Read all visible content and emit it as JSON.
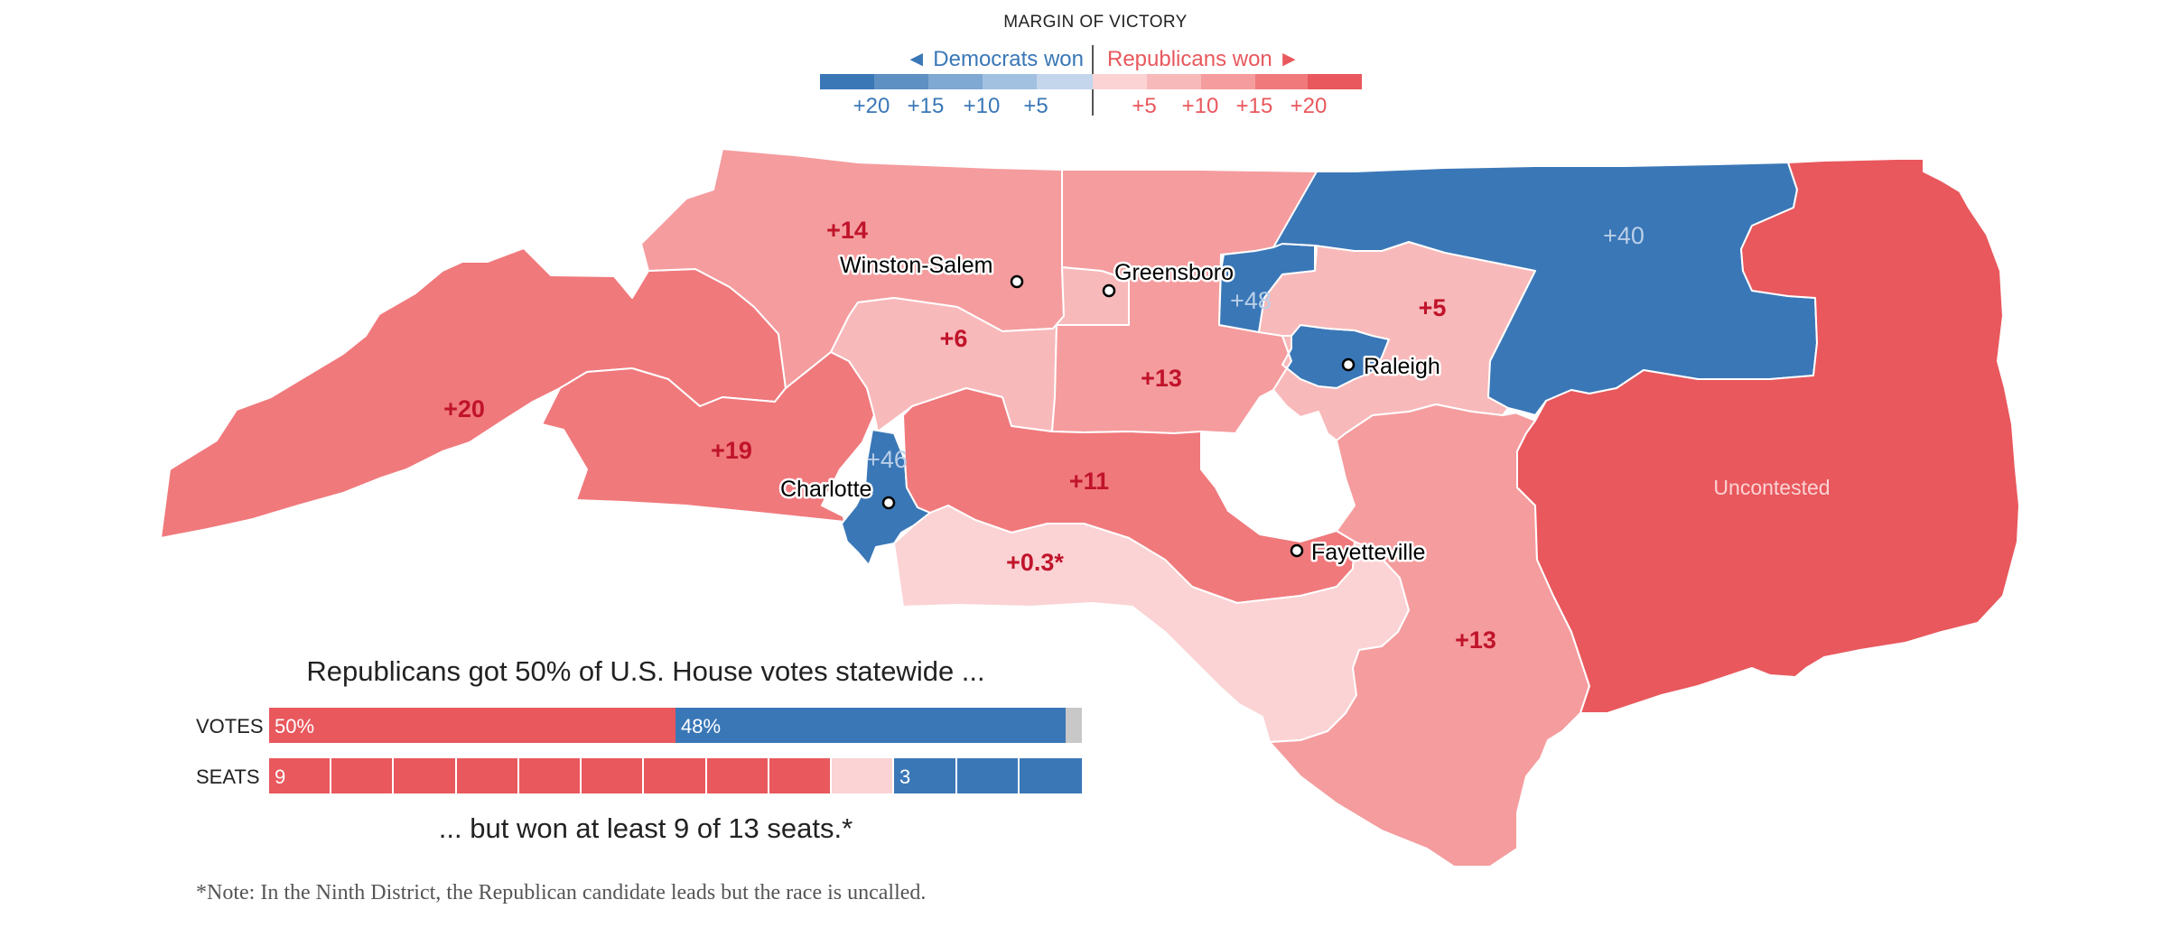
{
  "legend": {
    "title": "MARGIN OF VICTORY",
    "dem_label": "◄ Democrats won",
    "rep_label": "Republicans won ►",
    "dem_ticks": [
      "+20",
      "+15",
      "+10",
      "+5"
    ],
    "rep_ticks": [
      "+5",
      "+10",
      "+15",
      "+20"
    ],
    "dem_colors": [
      "#3a77b7",
      "#5f90c4",
      "#7fa8d2",
      "#a2c0e0",
      "#c3d6ec"
    ],
    "rep_colors": [
      "#fbd3d4",
      "#f8b9ba",
      "#f59c9e",
      "#f0797c",
      "#e8585d"
    ]
  },
  "colors": {
    "dem": "#3a77b7",
    "rep": "#e8585d",
    "other": "#c8c8c8"
  },
  "map": {
    "districts": [
      {
        "id": "district-11",
        "margin": "+20",
        "party": "rep"
      },
      {
        "id": "district-10",
        "margin": "+19",
        "party": "rep"
      },
      {
        "id": "district-5",
        "margin": "+14",
        "party": "rep"
      },
      {
        "id": "district-6",
        "margin": "+6",
        "party": "rep"
      },
      {
        "id": "district-13",
        "margin": "+13",
        "party": "rep"
      },
      {
        "id": "district-12",
        "margin": "+46",
        "party": "dem"
      },
      {
        "id": "district-8",
        "margin": "+11",
        "party": "rep"
      },
      {
        "id": "district-9",
        "margin": "+0.3*",
        "party": "rep"
      },
      {
        "id": "district-4",
        "margin": "+48",
        "party": "dem"
      },
      {
        "id": "district-2",
        "margin": "+5",
        "party": "rep"
      },
      {
        "id": "district-1",
        "margin": "+40",
        "party": "dem"
      },
      {
        "id": "district-7",
        "margin": "+13",
        "party": "rep"
      },
      {
        "id": "district-3",
        "margin": "Uncontested",
        "party": "rep"
      }
    ],
    "cities": [
      "Winston-Salem",
      "Greensboro",
      "Raleigh",
      "Charlotte",
      "Fayetteville"
    ]
  },
  "summary": {
    "statement_top": "Republicans got 50% of U.S. House votes statewide ...",
    "statement_bottom": "... but won at least 9 of 13 seats.*",
    "votes_label": "VOTES",
    "seats_label": "SEATS",
    "votes": {
      "rep": 50,
      "dem": 48,
      "other": 2,
      "rep_text": "50%",
      "dem_text": "48%"
    },
    "seats": {
      "rep": 9,
      "uncalled": 1,
      "dem": 3,
      "total": 13,
      "rep_text": "9",
      "dem_text": "3"
    }
  },
  "note": "*Note: In the Ninth District, the Republican candidate leads but the race is uncalled."
}
